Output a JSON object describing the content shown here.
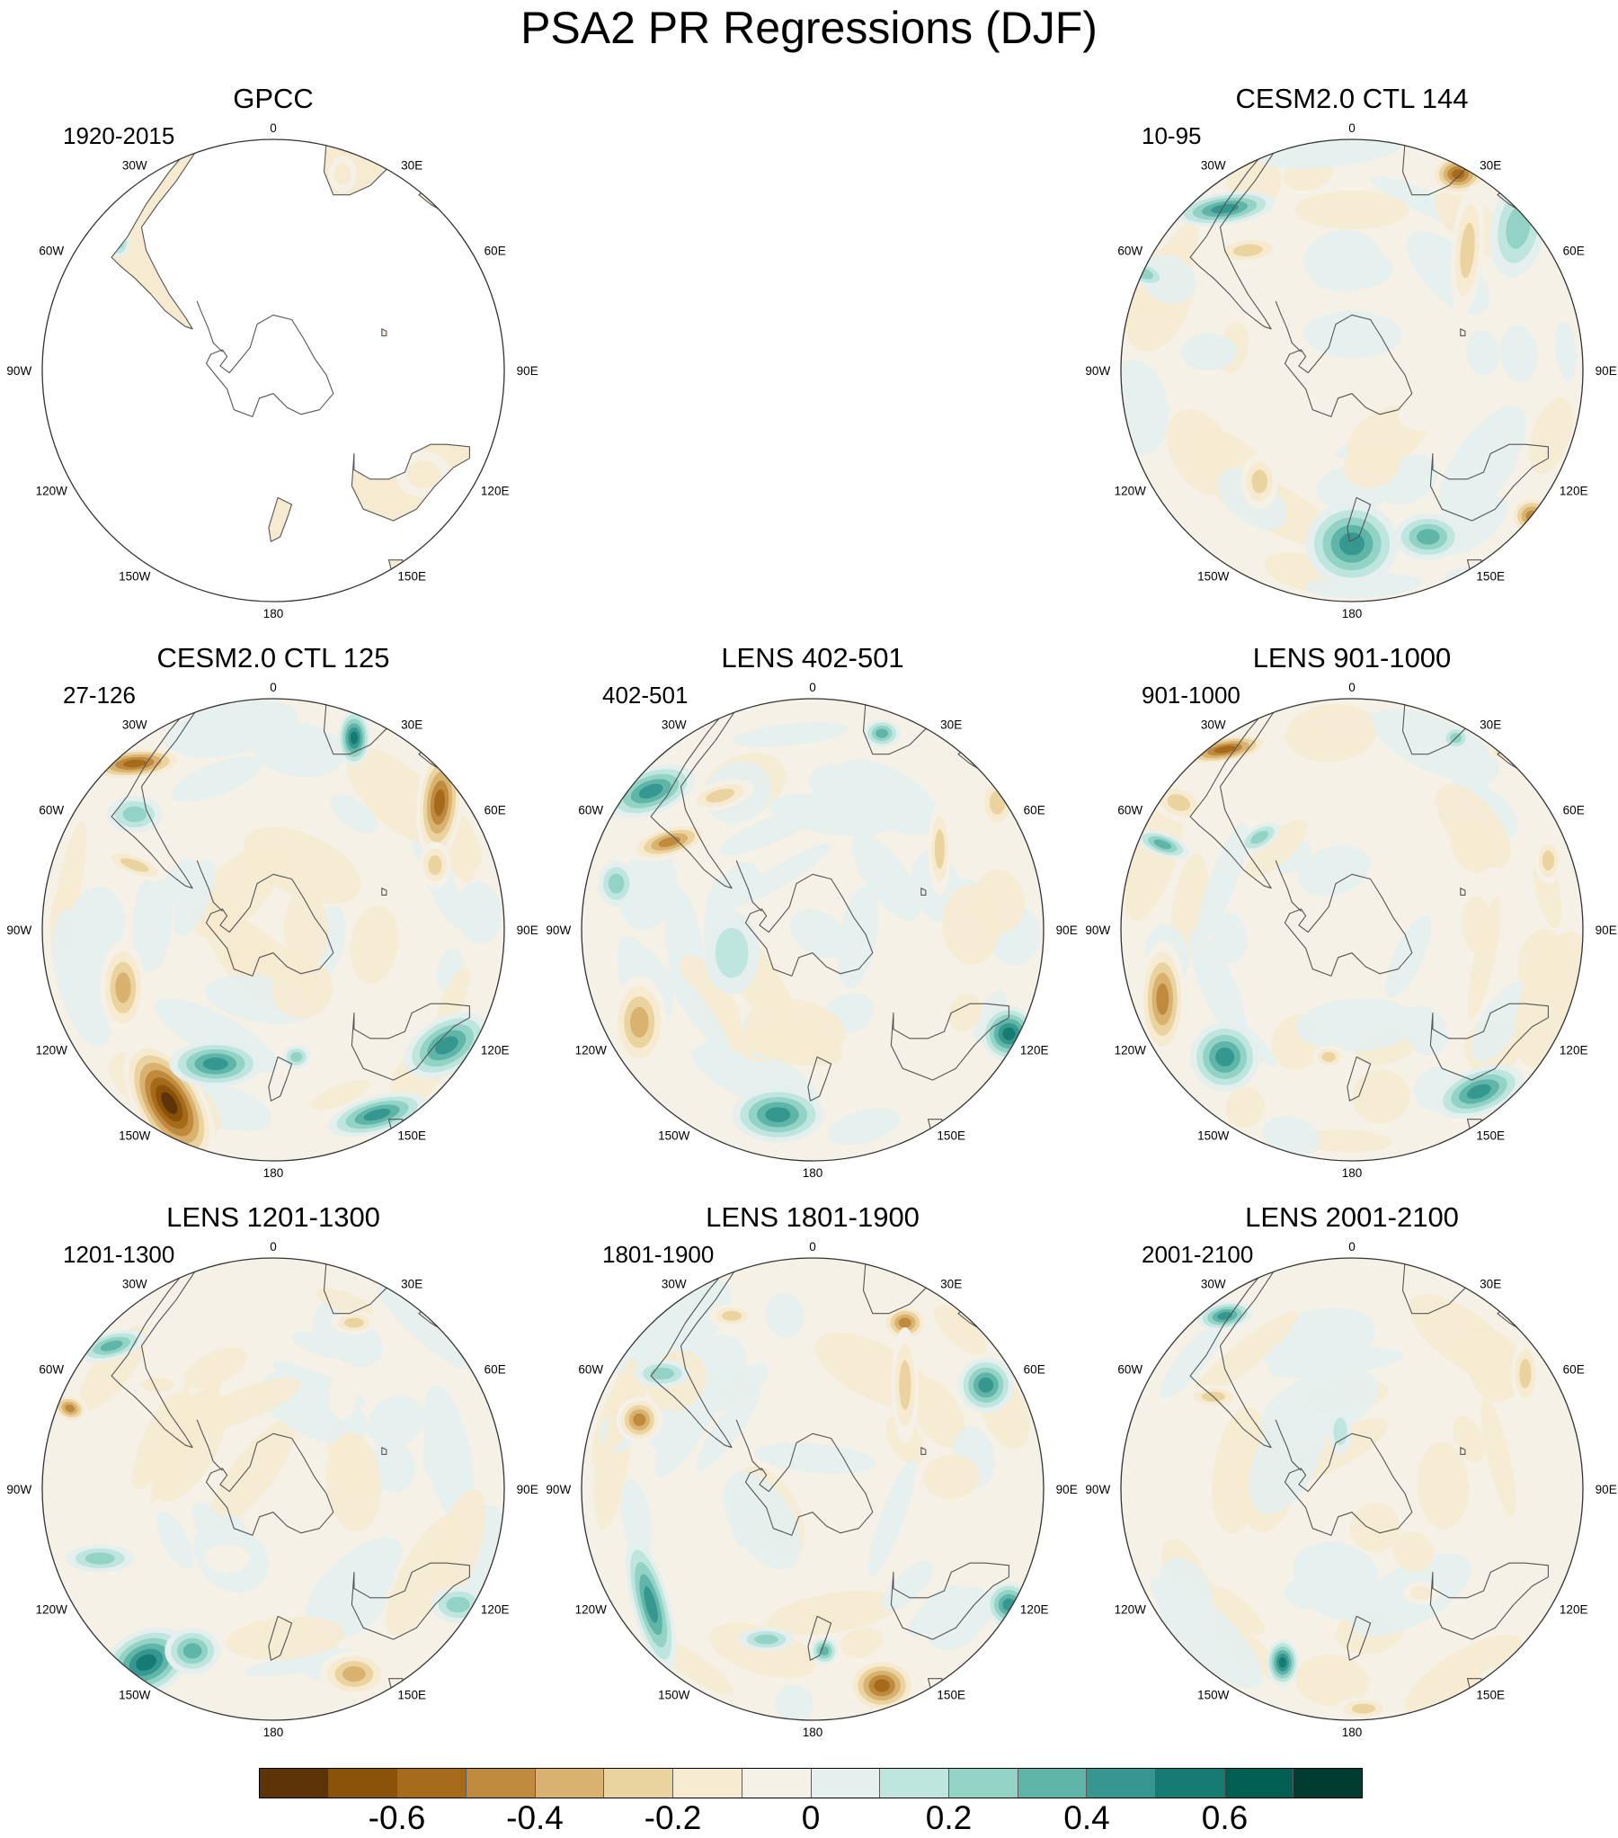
{
  "title": "PSA2 PR Regressions (DJF)",
  "longitude_labels": [
    "0",
    "30E",
    "60E",
    "90E",
    "120E",
    "150E",
    "180",
    "150W",
    "120W",
    "90W",
    "60W",
    "30W"
  ],
  "panels": [
    {
      "id": "gpcc",
      "title": "GPCC",
      "period": "1920-2015",
      "data_coverage": "land-only"
    },
    {
      "id": "cesm2-ctl-144",
      "title": "CESM2.0 CTL 144",
      "period": "10-95",
      "data_coverage": "global"
    },
    {
      "id": "cesm2-ctl-125",
      "title": "CESM2.0 CTL 125",
      "period": "27-126",
      "data_coverage": "global"
    },
    {
      "id": "lens-402-501",
      "title": "LENS 402-501",
      "period": "402-501",
      "data_coverage": "global"
    },
    {
      "id": "lens-901-1000",
      "title": "LENS 901-1000",
      "period": "901-1000",
      "data_coverage": "global"
    },
    {
      "id": "lens-1201-1300",
      "title": "LENS 1201-1300",
      "period": "1201-1300",
      "data_coverage": "global"
    },
    {
      "id": "lens-1801-1900",
      "title": "LENS 1801-1900",
      "period": "1801-1900",
      "data_coverage": "global"
    },
    {
      "id": "lens-2001-2100",
      "title": "LENS 2001-2100",
      "period": "2001-2100",
      "data_coverage": "global"
    }
  ],
  "colorbar": {
    "colors": [
      "#5c3407",
      "#8a5109",
      "#a56a1a",
      "#c08a3e",
      "#d8b26e",
      "#ebd3a0",
      "#f6ead0",
      "#f5f1e6",
      "#e4efee",
      "#bfe6de",
      "#92d3c5",
      "#5fb5a8",
      "#35978f",
      "#167b70",
      "#005e52",
      "#003c30"
    ],
    "ticks": [
      {
        "label": "-0.6",
        "value": -0.6
      },
      {
        "label": "-0.4",
        "value": -0.4
      },
      {
        "label": "-0.2",
        "value": -0.2
      },
      {
        "label": "0",
        "value": 0
      },
      {
        "label": "0.2",
        "value": 0.2
      },
      {
        "label": "0.4",
        "value": 0.4
      },
      {
        "label": "0.6",
        "value": 0.6
      }
    ]
  }
}
